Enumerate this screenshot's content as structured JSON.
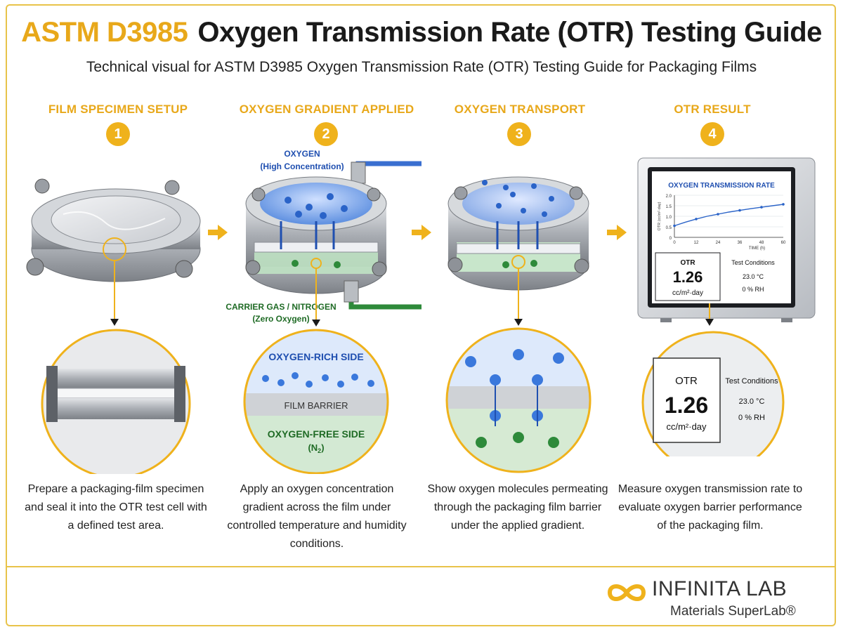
{
  "header": {
    "title_standard": "ASTM D3985",
    "title_rest": "Oxygen Transmission Rate (OTR) Testing Guide",
    "subtitle": "Technical visual for ASTM D3985 Oxygen Transmission Rate (OTR) Testing Guide for Packaging Films"
  },
  "steps": [
    {
      "number": "1",
      "heading": "FILM SPECIMEN SETUP",
      "description": "Prepare a packaging-film specimen and seal it into the OTR test cell with a defined test area."
    },
    {
      "number": "2",
      "heading": "OXYGEN GRADIENT APPLIED",
      "oxygen_label": "OXYGEN",
      "oxygen_sub": "(High Concentration)",
      "carrier_label": "CARRIER GAS / NITROGEN",
      "carrier_sub": "(Zero Oxygen)",
      "zoom_top": "OXYGEN-RICH SIDE",
      "zoom_mid": "FILM BARRIER",
      "zoom_bottom": "OXYGEN-FREE SIDE",
      "zoom_bottom_sub": "(N",
      "zoom_bottom_sub_subscript": "2",
      "zoom_bottom_sub_end": ")",
      "description": "Apply an oxygen concentration gradient across the film under controlled temperature and humidity conditions."
    },
    {
      "number": "3",
      "heading": "OXYGEN TRANSPORT",
      "description": "Show oxygen molecules permeating through the packaging film barrier under the applied gradient."
    },
    {
      "number": "4",
      "heading": "OTR RESULT",
      "screen_title": "OXYGEN TRANSMISSION RATE",
      "y_axis_label": "OTR (cc/m²·day)",
      "x_axis_label": "TIME (h)",
      "otr_label": "OTR",
      "otr_value": "1.26",
      "otr_unit": "cc/m²·day",
      "conditions_label": "Test Conditions",
      "temperature": "23.0 °C",
      "humidity": "0 % RH",
      "description": "Measure oxygen transmission rate to evaluate oxygen barrier performance of the packaging film."
    }
  ],
  "chart_data": {
    "type": "line",
    "title": "OXYGEN TRANSMISSION RATE",
    "xlabel": "TIME (h)",
    "ylabel": "OTR (cc/m²·day)",
    "x_ticks": [
      "0",
      "12",
      "24",
      "36",
      "48",
      "60"
    ],
    "y_ticks": [
      "0",
      "0.5",
      "1.0",
      "1.5",
      "2.0"
    ],
    "xlim": [
      0,
      60
    ],
    "ylim": [
      0,
      2.0
    ],
    "x": [
      0,
      6,
      12,
      18,
      24,
      30,
      36,
      42,
      48,
      54,
      60
    ],
    "y": [
      0.55,
      0.72,
      0.87,
      1.0,
      1.1,
      1.2,
      1.28,
      1.36,
      1.43,
      1.5,
      1.57
    ],
    "grid": true
  },
  "footer": {
    "brand": "INFINITA LAB",
    "tagline": "Materials SuperLab®"
  },
  "colors": {
    "accent": "#efb21c",
    "oxygen": "#2a63c8",
    "nitrogen": "#2e8a3a",
    "steel": "#b9bdc2"
  },
  "icons": [
    "infinity-logo-icon",
    "flow-arrow-icon"
  ]
}
